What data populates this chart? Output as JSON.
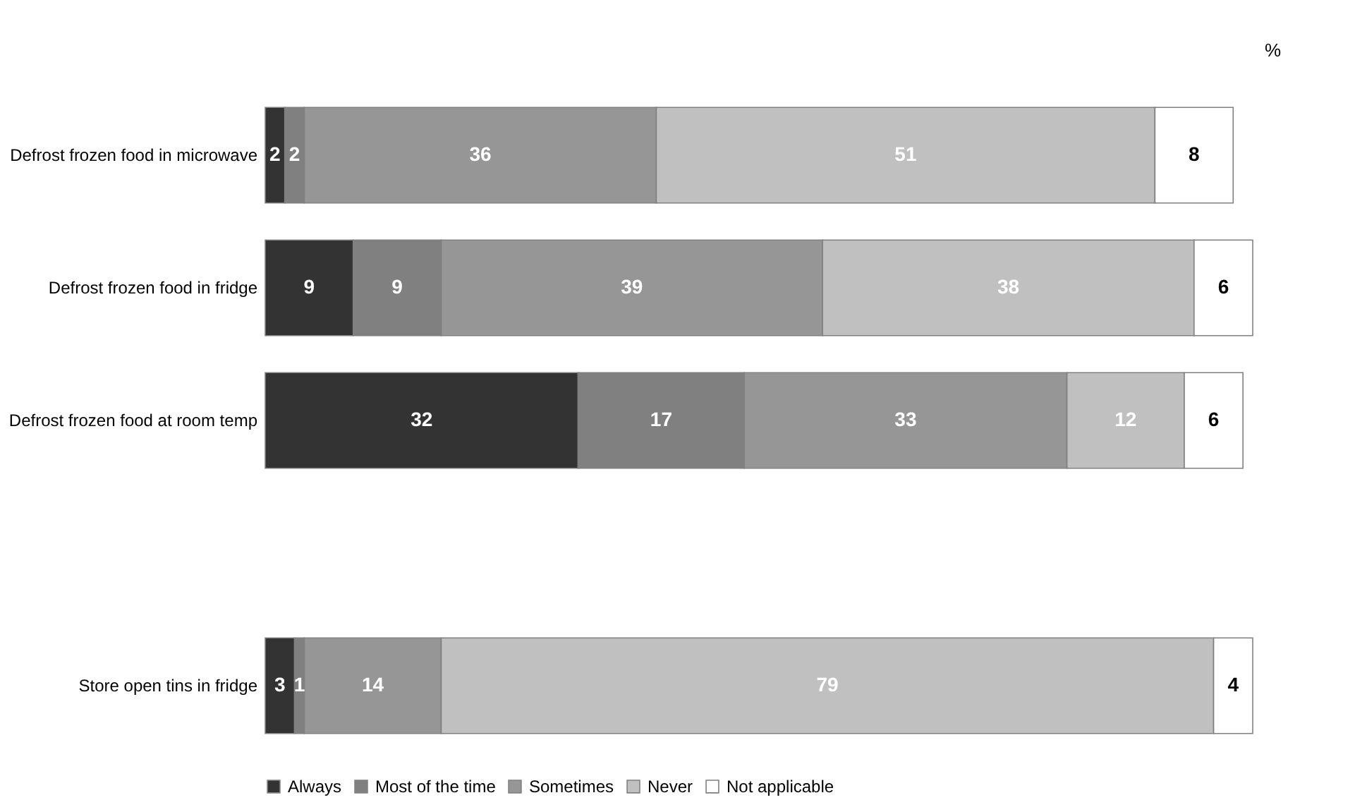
{
  "chart_data": {
    "type": "bar",
    "orientation": "horizontal",
    "stacked": true,
    "data_labels": true,
    "legend": "bottom",
    "categories": [
      "Defrost frozen food in microwave",
      "Defrost frozen food in fridge",
      "Defrost frozen food at room temp",
      null,
      "Store open tins in fridge"
    ],
    "series": [
      {
        "name": "Always",
        "color": "#333333",
        "values": [
          2,
          9,
          32,
          null,
          3
        ]
      },
      {
        "name": "Most of the time",
        "color": "#808080",
        "values": [
          2,
          9,
          17,
          null,
          1
        ]
      },
      {
        "name": "Sometimes",
        "color": "#969696",
        "values": [
          36,
          39,
          33,
          null,
          14
        ]
      },
      {
        "name": "Never",
        "color": "#c0c0c0",
        "values": [
          51,
          38,
          12,
          null,
          79
        ]
      },
      {
        "name": "Not applicable",
        "color": "#ffffff",
        "values": [
          8,
          6,
          6,
          null,
          4
        ]
      }
    ],
    "annotations": [
      "%"
    ]
  }
}
